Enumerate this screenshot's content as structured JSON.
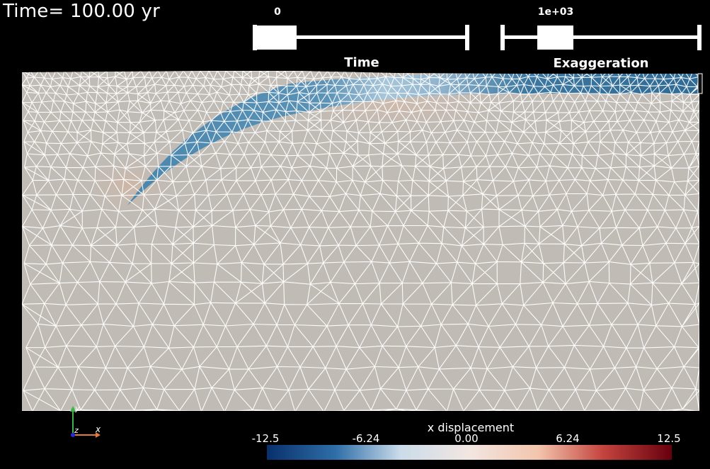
{
  "time_annotation": "Time= 100.00 yr",
  "time_slider": {
    "title": "Time",
    "value_label": "0",
    "value_fraction": 0.02
  },
  "exaggeration_slider": {
    "title": "Exaggeration",
    "value_label": "1e+03",
    "value_fraction": 0.2
  },
  "axes_triad": {
    "x_label": "x",
    "y_label": "y",
    "z_label": "z"
  },
  "colorbar": {
    "title": "x displacement",
    "ticks": [
      "-12.5",
      "-6.24",
      "0.00",
      "6.24",
      "12.5"
    ],
    "colors": [
      "#08306b",
      "#2f6ea8",
      "#cbdcea",
      "#f2e6e1",
      "#f3c5ad",
      "#c4443e",
      "#67000d"
    ]
  },
  "mesh": {
    "background_color": "#c0bbb5",
    "edge_color": "#ffffff",
    "slab_color": "#3f7fa6"
  }
}
